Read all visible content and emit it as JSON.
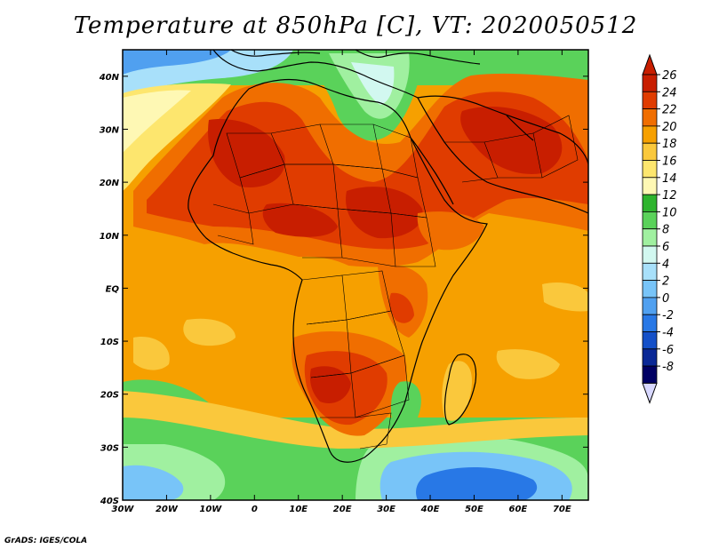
{
  "title": "Temperature at 850hPa [C], VT: 2020050512",
  "credit": "GrADS: IGES/COLA",
  "map": {
    "lon_range": [
      -30,
      76
    ],
    "lat_range": [
      -40,
      45
    ],
    "lat_ticks": [
      {
        "value": 40,
        "label": "40N"
      },
      {
        "value": 30,
        "label": "30N"
      },
      {
        "value": 20,
        "label": "20N"
      },
      {
        "value": 10,
        "label": "10N"
      },
      {
        "value": 0,
        "label": "EQ"
      },
      {
        "value": -10,
        "label": "10S"
      },
      {
        "value": -20,
        "label": "20S"
      },
      {
        "value": -30,
        "label": "30S"
      },
      {
        "value": -40,
        "label": "40S"
      }
    ],
    "lon_ticks": [
      {
        "value": -30,
        "label": "30W"
      },
      {
        "value": -20,
        "label": "20W"
      },
      {
        "value": -10,
        "label": "10W"
      },
      {
        "value": 0,
        "label": "0"
      },
      {
        "value": 10,
        "label": "10E"
      },
      {
        "value": 20,
        "label": "20E"
      },
      {
        "value": 30,
        "label": "30E"
      },
      {
        "value": 40,
        "label": "40E"
      },
      {
        "value": 50,
        "label": "50E"
      },
      {
        "value": 60,
        "label": "60E"
      },
      {
        "value": 70,
        "label": "70E"
      }
    ]
  },
  "colorbar": {
    "levels": [
      26,
      24,
      22,
      20,
      18,
      16,
      14,
      12,
      10,
      8,
      6,
      4,
      2,
      0,
      -2,
      -4,
      -6,
      -8
    ],
    "labels": [
      "26",
      "24",
      "22",
      "20",
      "18",
      "16",
      "14",
      "12",
      "10",
      "8",
      "6",
      "4",
      "2",
      "0",
      "-2",
      "-4",
      "-6",
      "-8"
    ],
    "colors": [
      "#c81e00",
      "#e03c00",
      "#f06e00",
      "#f6a000",
      "#fac83c",
      "#fde66e",
      "#fef8b4",
      "#2eb42e",
      "#5ad25a",
      "#a0f0a0",
      "#d2f8f0",
      "#a8e0fa",
      "#78c4f8",
      "#50a0f0",
      "#2878e6",
      "#1450c8",
      "#0a2896",
      "#000064"
    ],
    "overflow_high": "#c81e00",
    "overflow_low": "#d8d8ff"
  }
}
